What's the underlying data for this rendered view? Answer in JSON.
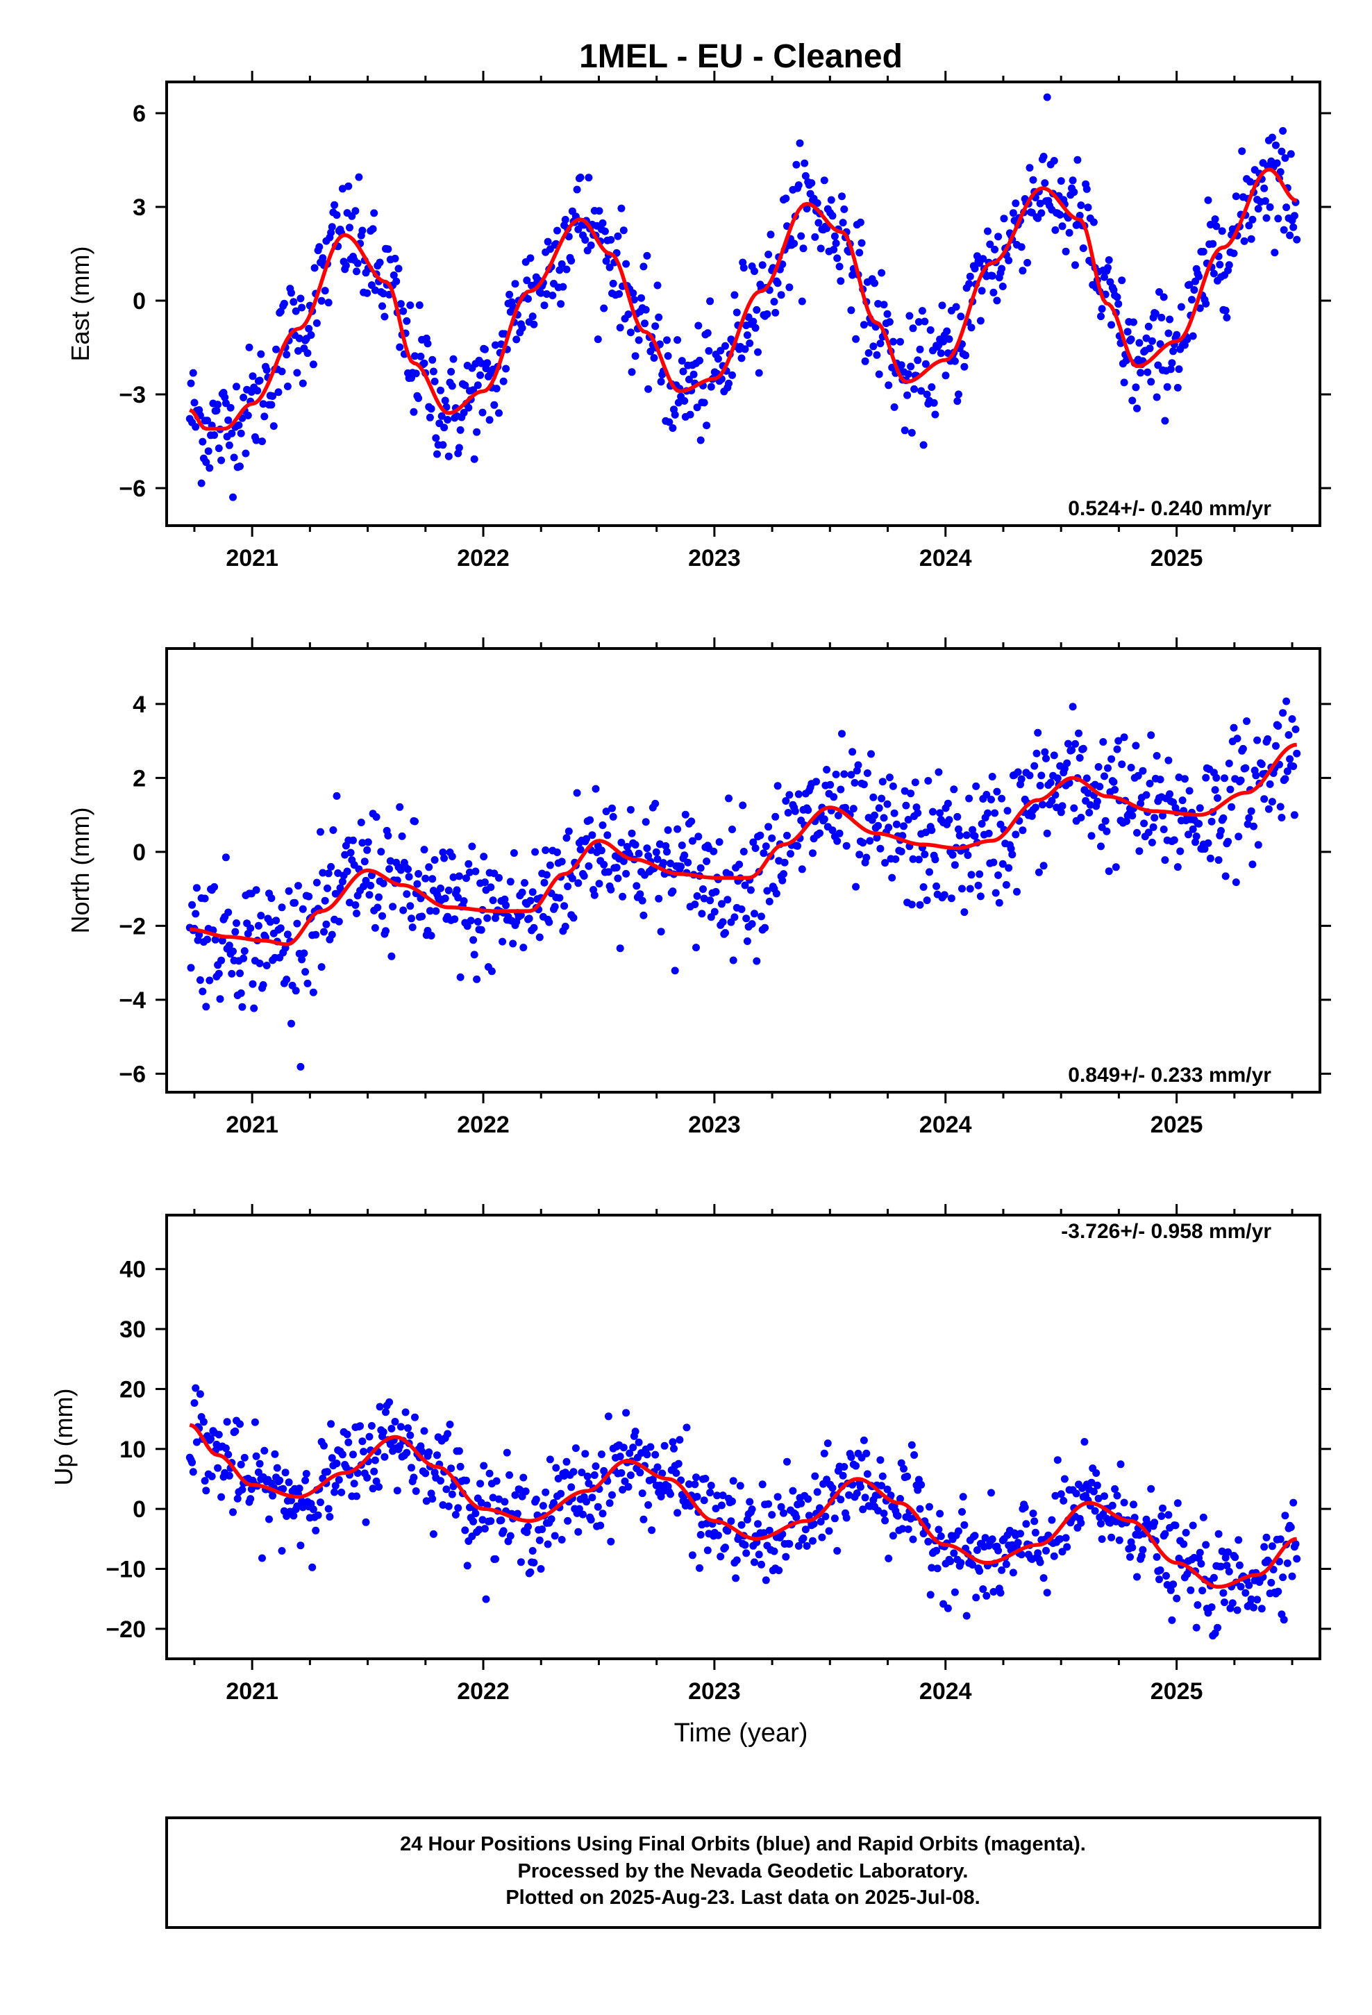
{
  "title": "1MEL  - EU - Cleaned",
  "xlabel": "Time (year)",
  "footer": {
    "line1": "24 Hour Positions Using Final Orbits (blue) and Rapid Orbits (magenta).",
    "line2": "Processed by the Nevada Geodetic Laboratory.",
    "line3": "Plotted on 2025-Aug-23. Last data on 2025-Jul-08."
  },
  "colors": {
    "points": "#0000ff",
    "fit": "#ff0000",
    "frame": "#000000"
  },
  "chart_data": [
    {
      "type": "scatter",
      "ylabel": "East (mm)",
      "rate_text": "0.524+/- 0.240 mm/yr",
      "xlim": [
        2020.63,
        2025.62
      ],
      "ylim": [
        -7.2,
        7.0
      ],
      "xticks": [
        2021,
        2022,
        2023,
        2024,
        2025
      ],
      "yticks": [
        6,
        3,
        0,
        -3,
        -6
      ],
      "ytick_labels": [
        "6",
        "3",
        "0",
        "−3",
        "−6"
      ],
      "fit_x": [
        2020.73,
        2020.8,
        2020.88,
        2021.0,
        2021.2,
        2021.4,
        2021.58,
        2021.7,
        2021.85,
        2022.0,
        2022.2,
        2022.42,
        2022.55,
        2022.7,
        2022.85,
        2023.0,
        2023.2,
        2023.4,
        2023.55,
        2023.7,
        2023.83,
        2024.0,
        2024.2,
        2024.42,
        2024.58,
        2024.7,
        2024.83,
        2025.0,
        2025.2,
        2025.4,
        2025.52
      ],
      "fit_y": [
        -3.5,
        -4.1,
        -4.1,
        -3.3,
        -0.9,
        2.1,
        0.6,
        -2.0,
        -3.6,
        -2.9,
        0.3,
        2.6,
        1.5,
        -1.0,
        -2.9,
        -2.5,
        0.3,
        3.1,
        2.2,
        -0.7,
        -2.6,
        -1.9,
        1.2,
        3.6,
        2.6,
        -0.1,
        -2.1,
        -1.3,
        1.7,
        4.2,
        3.2
      ],
      "scatter_sigma": 0.9
    },
    {
      "type": "scatter",
      "ylabel": "North (mm)",
      "rate_text": "0.849+/- 0.233 mm/yr",
      "xlim": [
        2020.63,
        2025.62
      ],
      "ylim": [
        -6.5,
        5.5
      ],
      "xticks": [
        2021,
        2022,
        2023,
        2024,
        2025
      ],
      "yticks": [
        4,
        2,
        0,
        -2,
        -4,
        -6
      ],
      "ytick_labels": [
        "4",
        "2",
        "0",
        "−2",
        "−4",
        "−6"
      ],
      "fit_x": [
        2020.73,
        2020.9,
        2021.05,
        2021.15,
        2021.3,
        2021.5,
        2021.65,
        2021.85,
        2022.05,
        2022.2,
        2022.35,
        2022.5,
        2022.65,
        2022.85,
        2023.0,
        2023.15,
        2023.3,
        2023.5,
        2023.7,
        2023.9,
        2024.05,
        2024.2,
        2024.4,
        2024.55,
        2024.7,
        2024.9,
        2025.1,
        2025.3,
        2025.52
      ],
      "fit_y": [
        -2.1,
        -2.3,
        -2.4,
        -2.5,
        -1.6,
        -0.5,
        -0.9,
        -1.5,
        -1.6,
        -1.6,
        -0.6,
        0.3,
        -0.2,
        -0.6,
        -0.7,
        -0.7,
        0.2,
        1.2,
        0.5,
        0.2,
        0.1,
        0.3,
        1.4,
        2.0,
        1.5,
        1.1,
        1.0,
        1.6,
        2.9
      ],
      "scatter_sigma": 0.9
    },
    {
      "type": "scatter",
      "ylabel": "Up (mm)",
      "rate_text": "-3.726+/- 0.958 mm/yr",
      "xlim": [
        2020.63,
        2025.62
      ],
      "ylim": [
        -25,
        49
      ],
      "xticks": [
        2021,
        2022,
        2023,
        2024,
        2025
      ],
      "yticks": [
        40,
        30,
        20,
        10,
        0,
        -10,
        -20
      ],
      "ytick_labels": [
        "40",
        "30",
        "20",
        "10",
        "0",
        "−10",
        "−20"
      ],
      "fit_x": [
        2020.73,
        2020.85,
        2021.0,
        2021.2,
        2021.4,
        2021.62,
        2021.8,
        2022.0,
        2022.2,
        2022.45,
        2022.62,
        2022.8,
        2023.0,
        2023.18,
        2023.4,
        2023.62,
        2023.8,
        2024.0,
        2024.18,
        2024.4,
        2024.62,
        2024.8,
        2025.0,
        2025.18,
        2025.35,
        2025.52
      ],
      "fit_y": [
        14,
        9,
        4,
        2,
        6,
        12,
        7,
        0,
        -2,
        3,
        8,
        5,
        -2,
        -5,
        -2,
        5,
        1,
        -6,
        -9,
        -6,
        1,
        -2,
        -9,
        -13,
        -11,
        -5
      ],
      "scatter_sigma": 4.0
    }
  ]
}
